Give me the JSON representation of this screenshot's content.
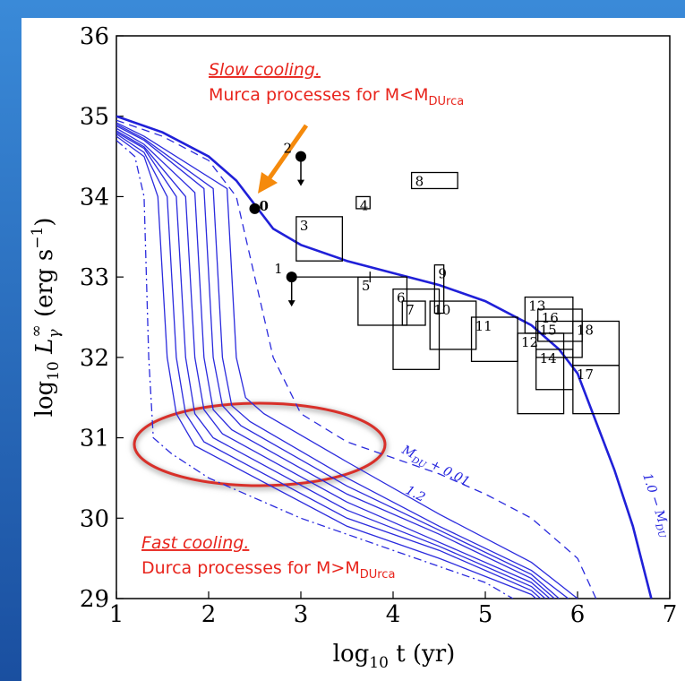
{
  "chart_data": {
    "type": "line",
    "xlim": [
      1,
      7
    ],
    "ylim": [
      29,
      36
    ],
    "xticks": [
      1,
      2,
      3,
      4,
      5,
      6,
      7
    ],
    "yticks": [
      29,
      30,
      31,
      32,
      33,
      34,
      35,
      36
    ],
    "xlabel": [
      "log",
      "10",
      " t (yr)"
    ],
    "ylabel": [
      "log",
      "10",
      " L",
      "γ",
      "∞",
      " (erg s",
      "−1",
      ")"
    ],
    "series": [
      {
        "color": "#2b2bdd",
        "style": "solid",
        "x": [
          1,
          1.3,
          1.45,
          1.55,
          1.65,
          1.85,
          3.5,
          4.5,
          5.5,
          5.55
        ],
        "values": [
          34.75,
          34.5,
          34.0,
          32.0,
          31.3,
          30.9,
          29.9,
          29.5,
          29.05,
          29
        ]
      },
      {
        "color": "#2b2bdd",
        "style": "solid",
        "x": [
          1,
          1.3,
          1.55,
          1.65,
          1.75,
          1.95,
          3.5,
          4.5,
          5.5,
          5.6
        ],
        "values": [
          34.78,
          34.55,
          34.0,
          32.0,
          31.3,
          30.95,
          30.0,
          29.6,
          29.1,
          29
        ]
      },
      {
        "color": "#2b2bdd",
        "style": "solid",
        "x": [
          1,
          1.3,
          1.65,
          1.75,
          1.85,
          2.05,
          3.5,
          4.5,
          5.5,
          5.65
        ],
        "values": [
          34.8,
          34.6,
          34.0,
          32.0,
          31.3,
          31.0,
          30.1,
          29.65,
          29.15,
          29
        ]
      },
      {
        "color": "#2b2bdd",
        "style": "solid",
        "x": [
          1,
          1.3,
          1.75,
          1.85,
          1.95,
          2.15,
          3.5,
          4.5,
          5.5,
          5.7
        ],
        "values": [
          34.82,
          34.62,
          34.0,
          32.0,
          31.35,
          31.05,
          30.2,
          29.7,
          29.2,
          29
        ]
      },
      {
        "color": "#2b2bdd",
        "style": "solid",
        "x": [
          1,
          1.3,
          1.85,
          1.95,
          2.05,
          2.25,
          3.5,
          4.5,
          5.5,
          5.75
        ],
        "values": [
          34.85,
          34.65,
          34.05,
          32.0,
          31.35,
          31.1,
          30.3,
          29.8,
          29.25,
          29
        ]
      },
      {
        "color": "#2b2bdd",
        "style": "solid",
        "x": [
          1,
          1.3,
          1.95,
          2.05,
          2.15,
          2.35,
          3.5,
          4.5,
          5.5,
          5.8
        ],
        "values": [
          34.88,
          34.7,
          34.1,
          32.0,
          31.4,
          31.15,
          30.4,
          29.85,
          29.3,
          29
        ]
      },
      {
        "color": "#2b2bdd",
        "style": "solid",
        "x": [
          1,
          1.3,
          2.05,
          2.15,
          2.25,
          2.45,
          3.5,
          4.5,
          5.5,
          5.9
        ],
        "values": [
          34.9,
          34.72,
          34.1,
          32.0,
          31.4,
          31.2,
          30.5,
          29.9,
          29.35,
          29
        ]
      },
      {
        "color": "#2b2bdd",
        "style": "solid",
        "x": [
          1,
          1.3,
          2.2,
          2.3,
          2.4,
          2.6,
          3.5,
          4.5,
          5.5,
          6.0
        ],
        "values": [
          34.92,
          34.75,
          34.1,
          32.0,
          31.5,
          31.3,
          30.7,
          30.05,
          29.45,
          29
        ]
      },
      {
        "color": "#2b2bdd",
        "style": "dashdot",
        "x": [
          1,
          1.2,
          1.3,
          1.35,
          1.4,
          1.6,
          2,
          3,
          4,
          5,
          5.3
        ],
        "values": [
          34.7,
          34.5,
          34.0,
          32.0,
          31.0,
          30.8,
          30.5,
          30.0,
          29.6,
          29.2,
          29.0
        ]
      },
      {
        "color": "#2b2bdd",
        "style": "dashed",
        "x": [
          1,
          1.5,
          2,
          2.3,
          2.5,
          2.7,
          3,
          3.5,
          4,
          4.5,
          5,
          5.5,
          6,
          6.2
        ],
        "values": [
          34.95,
          34.75,
          34.45,
          34.0,
          33.0,
          32.0,
          31.3,
          30.95,
          30.75,
          30.55,
          30.3,
          30.0,
          29.5,
          29.0
        ]
      },
      {
        "color": "#2020d8",
        "style": "thick",
        "x": [
          1,
          1.5,
          2,
          2.3,
          2.5,
          2.7,
          3,
          3.5,
          4,
          4.5,
          5,
          5.5,
          5.8,
          6,
          6.2,
          6.4,
          6.6,
          6.8
        ],
        "values": [
          35.0,
          34.8,
          34.5,
          34.2,
          33.9,
          33.6,
          33.4,
          33.2,
          33.05,
          32.9,
          32.7,
          32.4,
          32.1,
          31.8,
          31.2,
          30.6,
          29.9,
          29.0
        ]
      }
    ],
    "curve_labels": [
      {
        "text": "M",
        "sub": "DU",
        "rest": " + 0.01"
      },
      {
        "text": "1.2"
      },
      {
        "text": "1.0 − M",
        "sub": "DU"
      }
    ],
    "points": [
      {
        "label": "0",
        "x": 2.5,
        "y": 33.85,
        "upper_limit": false
      },
      {
        "label": "1",
        "x": 2.9,
        "y": 33.0,
        "upper_limit": true,
        "x_upper": 3.75
      },
      {
        "label": "2",
        "x": 3.0,
        "y": 34.5,
        "upper_limit": true
      }
    ],
    "boxes": [
      {
        "label": "3",
        "x": [
          2.95,
          3.45
        ],
        "y": [
          33.2,
          33.75
        ]
      },
      {
        "label": "4",
        "x": [
          3.6,
          3.75
        ],
        "y": [
          33.85,
          34.0
        ]
      },
      {
        "label": "5",
        "x": [
          3.62,
          4.15
        ],
        "y": [
          32.4,
          33.0
        ]
      },
      {
        "label": "6",
        "x": [
          4.0,
          4.5
        ],
        "y": [
          31.85,
          32.85
        ]
      },
      {
        "label": "7",
        "x": [
          4.1,
          4.35
        ],
        "y": [
          32.4,
          32.7
        ]
      },
      {
        "label": "8",
        "x": [
          4.2,
          4.7
        ],
        "y": [
          34.1,
          34.3
        ]
      },
      {
        "label": "9",
        "x": [
          4.45,
          4.55
        ],
        "y": [
          32.55,
          33.15
        ]
      },
      {
        "label": "10",
        "x": [
          4.4,
          4.9
        ],
        "y": [
          32.1,
          32.7
        ]
      },
      {
        "label": "11",
        "x": [
          4.85,
          5.35
        ],
        "y": [
          31.95,
          32.5
        ]
      },
      {
        "label": "12",
        "x": [
          5.35,
          5.85
        ],
        "y": [
          31.3,
          32.3
        ]
      },
      {
        "label": "13",
        "x": [
          5.43,
          5.95
        ],
        "y": [
          32.3,
          32.75
        ]
      },
      {
        "label": "14",
        "x": [
          5.55,
          5.95
        ],
        "y": [
          31.6,
          32.1
        ]
      },
      {
        "label": "15",
        "x": [
          5.55,
          6.05
        ],
        "y": [
          32.0,
          32.45
        ]
      },
      {
        "label": "16",
        "x": [
          5.57,
          6.05
        ],
        "y": [
          32.2,
          32.6
        ]
      },
      {
        "label": "17",
        "x": [
          5.95,
          6.45
        ],
        "y": [
          31.3,
          31.9
        ]
      },
      {
        "label": "18",
        "x": [
          5.95,
          6.45
        ],
        "y": [
          31.9,
          32.45
        ]
      }
    ],
    "annotations": [
      {
        "text": "Slow cooling."
      },
      {
        "text": "Murca processes for M<M",
        "sub": "DUrca"
      },
      {
        "text": "Fast cooling."
      },
      {
        "text": "Durca processes for M>M",
        "sub": "DUrca"
      }
    ]
  }
}
